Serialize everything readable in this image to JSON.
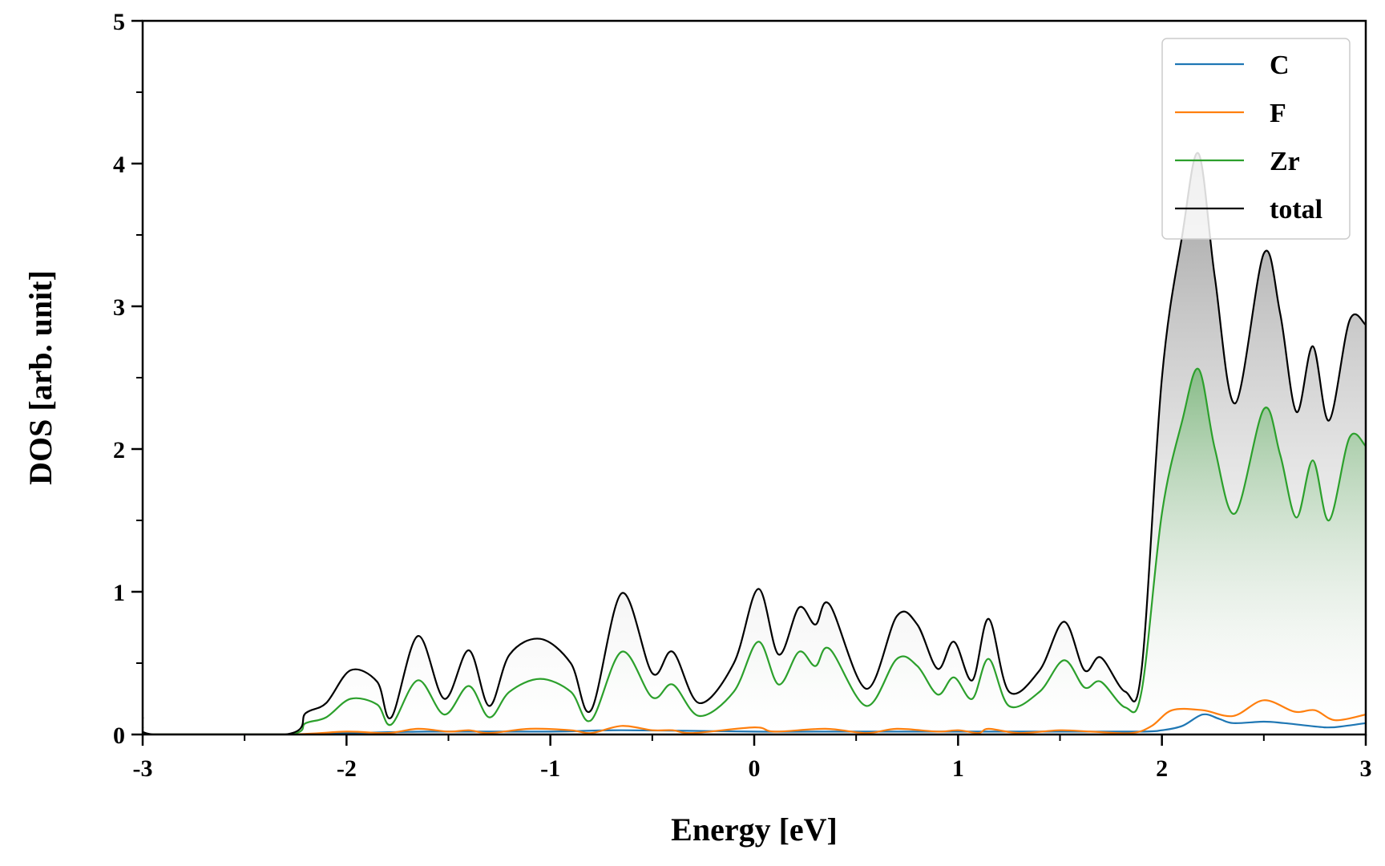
{
  "chart_data": {
    "type": "line",
    "xlabel": "Energy [eV]",
    "ylabel": "DOS [arb. unit]",
    "xlim": [
      -3,
      3
    ],
    "ylim": [
      0,
      5
    ],
    "xticks": [
      "-3",
      "-2",
      "-1",
      "0",
      "1",
      "2",
      "3"
    ],
    "yticks": [
      "0",
      "1",
      "2",
      "3",
      "4",
      "5"
    ],
    "grid": false,
    "legend_position": "top-right",
    "fill": "gradient under total and Zr curves",
    "series": [
      {
        "name": "C",
        "color": "#1f77b4",
        "points": [
          [
            -3.0,
            0.0
          ],
          [
            -2.3,
            0.0
          ],
          [
            -2.0,
            0.01
          ],
          [
            -1.6,
            0.02
          ],
          [
            -1.0,
            0.02
          ],
          [
            -0.65,
            0.03
          ],
          [
            0.0,
            0.02
          ],
          [
            0.3,
            0.02
          ],
          [
            0.7,
            0.02
          ],
          [
            1.0,
            0.02
          ],
          [
            1.5,
            0.02
          ],
          [
            1.9,
            0.02
          ],
          [
            2.0,
            0.03
          ],
          [
            2.1,
            0.06
          ],
          [
            2.2,
            0.14
          ],
          [
            2.28,
            0.11
          ],
          [
            2.35,
            0.08
          ],
          [
            2.5,
            0.09
          ],
          [
            2.6,
            0.08
          ],
          [
            2.8,
            0.05
          ],
          [
            2.9,
            0.06
          ],
          [
            3.0,
            0.08
          ]
        ]
      },
      {
        "name": "F",
        "color": "#ff7f0e",
        "points": [
          [
            -3.0,
            0.0
          ],
          [
            -2.3,
            0.0
          ],
          [
            -2.0,
            0.02
          ],
          [
            -1.8,
            0.01
          ],
          [
            -1.65,
            0.04
          ],
          [
            -1.5,
            0.02
          ],
          [
            -1.4,
            0.03
          ],
          [
            -1.3,
            0.01
          ],
          [
            -1.1,
            0.04
          ],
          [
            -0.9,
            0.03
          ],
          [
            -0.8,
            0.01
          ],
          [
            -0.65,
            0.06
          ],
          [
            -0.5,
            0.03
          ],
          [
            -0.4,
            0.03
          ],
          [
            -0.3,
            0.01
          ],
          [
            0.0,
            0.05
          ],
          [
            0.1,
            0.02
          ],
          [
            0.35,
            0.04
          ],
          [
            0.55,
            0.01
          ],
          [
            0.7,
            0.04
          ],
          [
            0.9,
            0.02
          ],
          [
            1.0,
            0.03
          ],
          [
            1.1,
            0.01
          ],
          [
            1.15,
            0.04
          ],
          [
            1.3,
            0.01
          ],
          [
            1.5,
            0.03
          ],
          [
            1.65,
            0.02
          ],
          [
            1.85,
            0.01
          ],
          [
            1.95,
            0.06
          ],
          [
            2.05,
            0.17
          ],
          [
            2.2,
            0.17
          ],
          [
            2.35,
            0.13
          ],
          [
            2.5,
            0.24
          ],
          [
            2.65,
            0.16
          ],
          [
            2.75,
            0.17
          ],
          [
            2.85,
            0.1
          ],
          [
            3.0,
            0.14
          ]
        ]
      },
      {
        "name": "Zr",
        "color": "#2ca02c",
        "points": [
          [
            -3.0,
            0.05
          ],
          [
            -2.95,
            0.0
          ],
          [
            -2.3,
            0.0
          ],
          [
            -2.2,
            0.08
          ],
          [
            -2.1,
            0.12
          ],
          [
            -1.98,
            0.25
          ],
          [
            -1.85,
            0.21
          ],
          [
            -1.78,
            0.07
          ],
          [
            -1.65,
            0.38
          ],
          [
            -1.52,
            0.14
          ],
          [
            -1.4,
            0.34
          ],
          [
            -1.3,
            0.12
          ],
          [
            -1.2,
            0.3
          ],
          [
            -1.05,
            0.39
          ],
          [
            -0.9,
            0.3
          ],
          [
            -0.8,
            0.1
          ],
          [
            -0.65,
            0.58
          ],
          [
            -0.5,
            0.26
          ],
          [
            -0.4,
            0.35
          ],
          [
            -0.27,
            0.13
          ],
          [
            -0.1,
            0.3
          ],
          [
            0.02,
            0.65
          ],
          [
            0.12,
            0.35
          ],
          [
            0.22,
            0.58
          ],
          [
            0.3,
            0.48
          ],
          [
            0.37,
            0.6
          ],
          [
            0.55,
            0.2
          ],
          [
            0.7,
            0.53
          ],
          [
            0.8,
            0.48
          ],
          [
            0.9,
            0.28
          ],
          [
            0.98,
            0.4
          ],
          [
            1.07,
            0.25
          ],
          [
            1.15,
            0.53
          ],
          [
            1.25,
            0.2
          ],
          [
            1.4,
            0.3
          ],
          [
            1.52,
            0.52
          ],
          [
            1.62,
            0.33
          ],
          [
            1.7,
            0.37
          ],
          [
            1.82,
            0.19
          ],
          [
            1.9,
            0.3
          ],
          [
            2.0,
            1.55
          ],
          [
            2.1,
            2.2
          ],
          [
            2.18,
            2.56
          ],
          [
            2.26,
            2.0
          ],
          [
            2.36,
            1.55
          ],
          [
            2.5,
            2.28
          ],
          [
            2.58,
            1.96
          ],
          [
            2.66,
            1.52
          ],
          [
            2.74,
            1.92
          ],
          [
            2.82,
            1.5
          ],
          [
            2.92,
            2.08
          ],
          [
            3.0,
            2.02
          ]
        ]
      },
      {
        "name": "total",
        "color": "#000000",
        "points": [
          [
            -3.0,
            0.12
          ],
          [
            -2.95,
            0.0
          ],
          [
            -2.3,
            0.0
          ],
          [
            -2.2,
            0.15
          ],
          [
            -2.1,
            0.22
          ],
          [
            -1.98,
            0.45
          ],
          [
            -1.85,
            0.37
          ],
          [
            -1.78,
            0.12
          ],
          [
            -1.65,
            0.69
          ],
          [
            -1.52,
            0.25
          ],
          [
            -1.4,
            0.59
          ],
          [
            -1.3,
            0.2
          ],
          [
            -1.2,
            0.56
          ],
          [
            -1.05,
            0.67
          ],
          [
            -0.9,
            0.5
          ],
          [
            -0.8,
            0.17
          ],
          [
            -0.65,
            0.99
          ],
          [
            -0.5,
            0.43
          ],
          [
            -0.4,
            0.58
          ],
          [
            -0.27,
            0.22
          ],
          [
            -0.1,
            0.5
          ],
          [
            0.02,
            1.02
          ],
          [
            0.12,
            0.56
          ],
          [
            0.22,
            0.89
          ],
          [
            0.3,
            0.77
          ],
          [
            0.37,
            0.91
          ],
          [
            0.55,
            0.32
          ],
          [
            0.7,
            0.83
          ],
          [
            0.8,
            0.77
          ],
          [
            0.9,
            0.46
          ],
          [
            0.98,
            0.65
          ],
          [
            1.07,
            0.38
          ],
          [
            1.15,
            0.81
          ],
          [
            1.25,
            0.3
          ],
          [
            1.4,
            0.45
          ],
          [
            1.52,
            0.79
          ],
          [
            1.62,
            0.45
          ],
          [
            1.7,
            0.54
          ],
          [
            1.82,
            0.3
          ],
          [
            1.9,
            0.45
          ],
          [
            2.0,
            2.5
          ],
          [
            2.1,
            3.5
          ],
          [
            2.18,
            4.07
          ],
          [
            2.26,
            3.2
          ],
          [
            2.36,
            2.32
          ],
          [
            2.5,
            3.37
          ],
          [
            2.58,
            2.95
          ],
          [
            2.66,
            2.26
          ],
          [
            2.74,
            2.72
          ],
          [
            2.82,
            2.2
          ],
          [
            2.92,
            2.9
          ],
          [
            3.0,
            2.87
          ]
        ]
      }
    ]
  }
}
